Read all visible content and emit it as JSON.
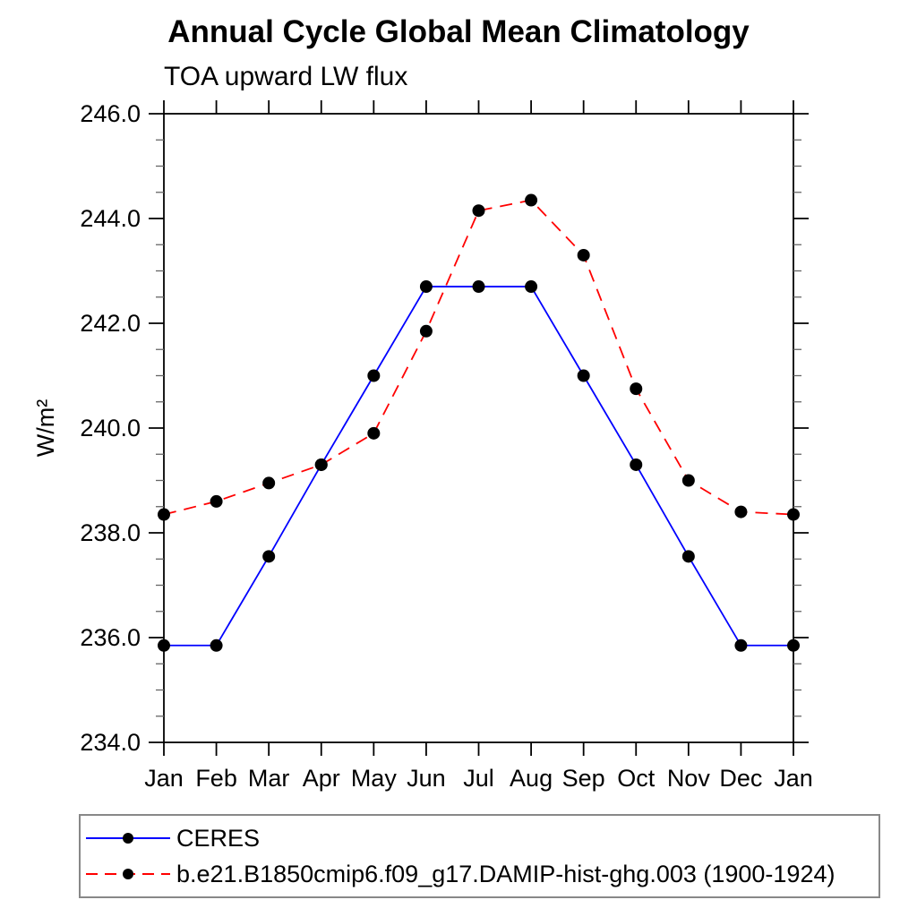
{
  "title": "Annual Cycle Global Mean Climatology",
  "subtitle": "TOA upward LW flux",
  "chart_data": {
    "type": "line",
    "x_categories": [
      "Jan",
      "Feb",
      "Mar",
      "Apr",
      "May",
      "Jun",
      "Jul",
      "Aug",
      "Sep",
      "Oct",
      "Nov",
      "Dec",
      "Jan"
    ],
    "ylabel": "W/m²",
    "ylim": [
      234.0,
      246.0
    ],
    "y_major_tick_step": 2.0,
    "y_minor_tick_step": 0.5,
    "y_major_tick_labels": [
      "234.0",
      "236.0",
      "238.0",
      "240.0",
      "242.0",
      "244.0",
      "246.0"
    ],
    "grid": false,
    "marker": "filled-circle",
    "marker_color": "#000000",
    "legend_position": "bottom-left-box",
    "series": [
      {
        "name": "CERES",
        "color": "#0000ff",
        "style": "solid",
        "values": [
          235.85,
          235.85,
          237.55,
          239.3,
          241.0,
          242.7,
          242.7,
          242.7,
          241.0,
          239.3,
          237.55,
          235.85,
          235.85
        ]
      },
      {
        "name": "b.e21.B1850cmip6.f09_g17.DAMIP-hist-ghg.003 (1900-1924)",
        "color": "#ff0000",
        "style": "dashed",
        "values": [
          238.35,
          238.6,
          238.95,
          239.3,
          239.9,
          241.85,
          244.15,
          244.35,
          243.3,
          240.75,
          239.0,
          238.4,
          238.35
        ]
      }
    ]
  }
}
